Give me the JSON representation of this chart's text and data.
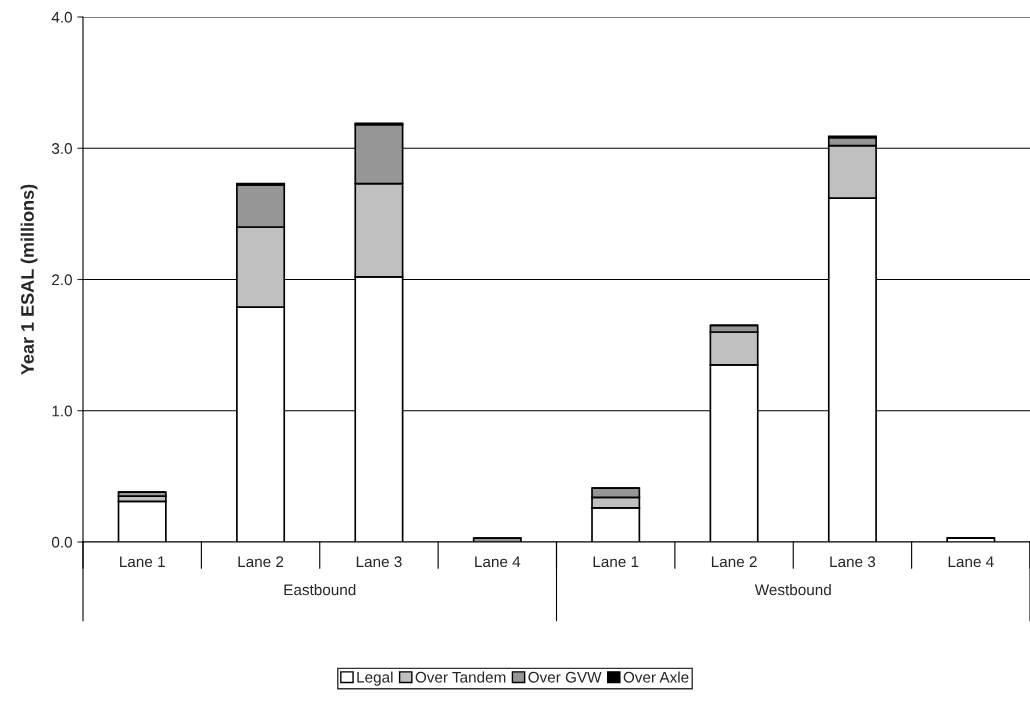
{
  "chart_data": {
    "type": "bar",
    "stacked": true,
    "ylabel": "Year 1 ESAL (millions)",
    "categories": [
      "Lane 1",
      "Lane 2",
      "Lane 3",
      "Lane 4",
      "Lane 1",
      "Lane 2",
      "Lane 3",
      "Lane 4"
    ],
    "annotations": [
      "Eastbound",
      "Westbound"
    ],
    "series": [
      {
        "name": "Legal",
        "color": "#ffffff",
        "values": [
          0.31,
          1.79,
          2.02,
          null,
          0.26,
          1.35,
          2.62,
          0.03
        ]
      },
      {
        "name": "Over Tandem",
        "color": "#c0c0c0",
        "values": [
          0.04,
          0.61,
          0.71,
          0.0,
          0.08,
          0.25,
          0.4,
          0.0
        ]
      },
      {
        "name": "Over GVW",
        "color": "#969696",
        "values": [
          0.03,
          0.32,
          0.45,
          0.03,
          0.07,
          0.05,
          0.06,
          0.0
        ]
      },
      {
        "name": "Over Axle",
        "color": "#000000",
        "values": [
          0.0,
          0.01,
          0.01,
          0.0,
          0.0,
          0.0,
          0.01,
          0.0
        ]
      }
    ],
    "ylim": [
      0,
      4
    ],
    "yticks": [
      {
        "value": 0,
        "label": "0.0"
      },
      {
        "value": 1,
        "label": "1.0"
      },
      {
        "value": 2,
        "label": "2.0"
      },
      {
        "value": 3,
        "label": "3.0"
      },
      {
        "value": 4,
        "label": "4.0"
      }
    ],
    "grid": "y",
    "legend": "bottom"
  }
}
